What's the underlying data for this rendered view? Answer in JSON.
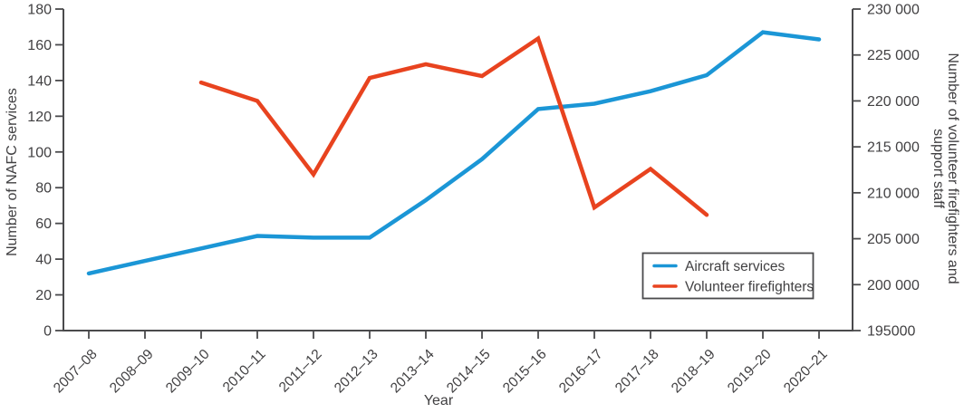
{
  "colors": {
    "background": "#ffffff",
    "axis": "#4a4a4c",
    "text": "#414042",
    "aircraft_blue": "#1b96d6",
    "firefighter_red": "#e8431f"
  },
  "chart_data": {
    "type": "line",
    "title": "",
    "xlabel": "Year",
    "grid": false,
    "categories": [
      "2007–08",
      "2008–09",
      "2009–10",
      "2010–11",
      "2011–12",
      "2012–13",
      "2013–14",
      "2014–15",
      "2015–16",
      "2016–17",
      "2017–18",
      "2018–19",
      "2019–20",
      "2020–21"
    ],
    "left_axis": {
      "label": "Number of NAFC services",
      "min": 0,
      "max": 180,
      "step": 20,
      "tick_values": [
        0,
        20,
        40,
        60,
        80,
        100,
        120,
        140,
        160,
        180
      ],
      "tick_labels": [
        "0",
        "20",
        "40",
        "60",
        "80",
        "100",
        "120",
        "140",
        "160",
        "180"
      ]
    },
    "right_axis": {
      "label_lines": [
        "Number of volunteer firefighters and",
        "support staff"
      ],
      "min": 195000,
      "max": 230000,
      "step": 5000,
      "tick_values": [
        230000,
        225000,
        220000,
        215000,
        210000,
        205000,
        200000,
        195000
      ],
      "tick_labels": [
        "230 000",
        "225 000",
        "220 000",
        "215 000",
        "210 000",
        "205 000",
        "200 000",
        "195000"
      ]
    },
    "series": [
      {
        "name": "Aircraft services",
        "axis": "left",
        "color": "#1b96d6",
        "values": [
          32,
          39,
          46,
          53,
          52,
          52,
          73,
          96,
          124,
          127,
          134,
          143,
          167,
          163
        ]
      },
      {
        "name": "Volunteer firefighters",
        "axis": "right",
        "color": "#e8431f",
        "values": [
          null,
          null,
          222000,
          220000,
          212000,
          222500,
          224000,
          222700,
          226800,
          208400,
          212600,
          207600,
          null,
          null
        ]
      }
    ],
    "legend": {
      "position": "inside-bottom-right",
      "items": [
        "Aircraft services",
        "Volunteer firefighters"
      ]
    }
  }
}
